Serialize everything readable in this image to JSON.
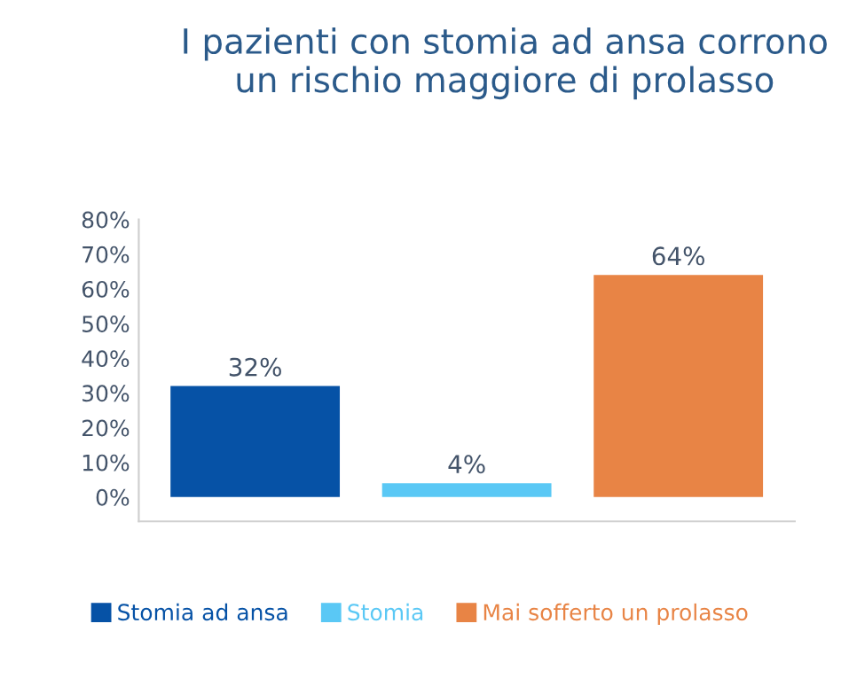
{
  "chart_data": {
    "type": "bar",
    "title": "I pazienti con stomia ad ansa corrono un rischio maggiore di prolasso",
    "categories": [
      null,
      null,
      null
    ],
    "series": [
      {
        "name": "Stomia ad ansa",
        "color": "#0652a6",
        "values": [
          32,
          null,
          null
        ],
        "value_labels": [
          "32%",
          null,
          null
        ]
      },
      {
        "name": "Stomia",
        "color": "#5ac8f5",
        "values": [
          null,
          4,
          null
        ],
        "value_labels": [
          null,
          "4%",
          null
        ]
      },
      {
        "name": "Mai sofferto un prolasso",
        "color": "#e88445",
        "values": [
          null,
          null,
          64
        ],
        "value_labels": [
          null,
          null,
          "64%"
        ]
      }
    ],
    "ylim": [
      -7,
      80
    ],
    "yticks": [
      {
        "value": 0,
        "label": "0%"
      },
      {
        "value": 10,
        "label": "10%"
      },
      {
        "value": 20,
        "label": "20%"
      },
      {
        "value": 30,
        "label": "30%"
      },
      {
        "value": 40,
        "label": "40%"
      },
      {
        "value": 50,
        "label": "50%"
      },
      {
        "value": 60,
        "label": "60%"
      },
      {
        "value": 70,
        "label": "70%"
      },
      {
        "value": 80,
        "label": "80%"
      }
    ],
    "grid": false,
    "legend": "bottom"
  }
}
